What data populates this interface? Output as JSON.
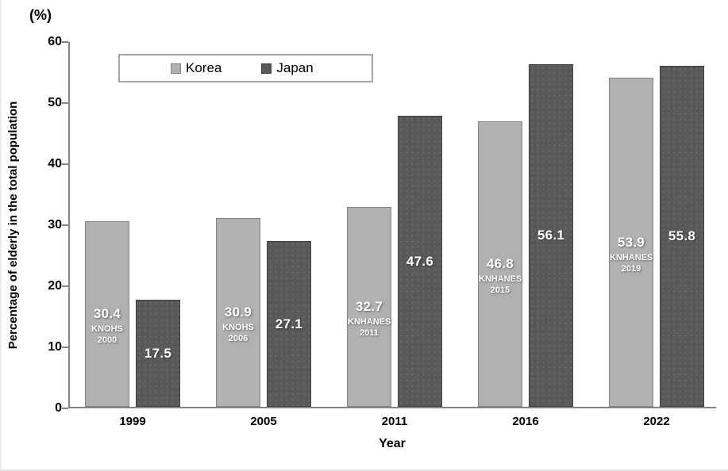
{
  "chart_data": {
    "type": "bar",
    "title": "",
    "categories": [
      "1999",
      "2005",
      "2011",
      "2016",
      "2022"
    ],
    "series": [
      {
        "name": "Korea",
        "color": "#b1b1b1",
        "values": [
          30.4,
          30.9,
          32.7,
          46.8,
          53.9
        ],
        "sources": [
          "KNOHS 2000",
          "KNOHS 2006",
          "KNHANES 2011",
          "KNHANES 2015",
          "KNHANES 2019"
        ]
      },
      {
        "name": "Japan",
        "color": "#595959",
        "values": [
          17.5,
          27.1,
          47.6,
          56.1,
          55.8
        ],
        "sources": [
          null,
          null,
          null,
          null,
          null
        ]
      }
    ],
    "xlabel": "Year",
    "ylabel": "Percentage of elderly in the total population",
    "y_unit": "(%)",
    "ylim": [
      0,
      60
    ],
    "ytick_labels": [
      "60",
      "50",
      "40",
      "30",
      "20",
      "10",
      "0"
    ],
    "grid": false,
    "legend_position": "top-left-inside",
    "value_label_color": "#ffffff",
    "axis_color": "#858585"
  }
}
